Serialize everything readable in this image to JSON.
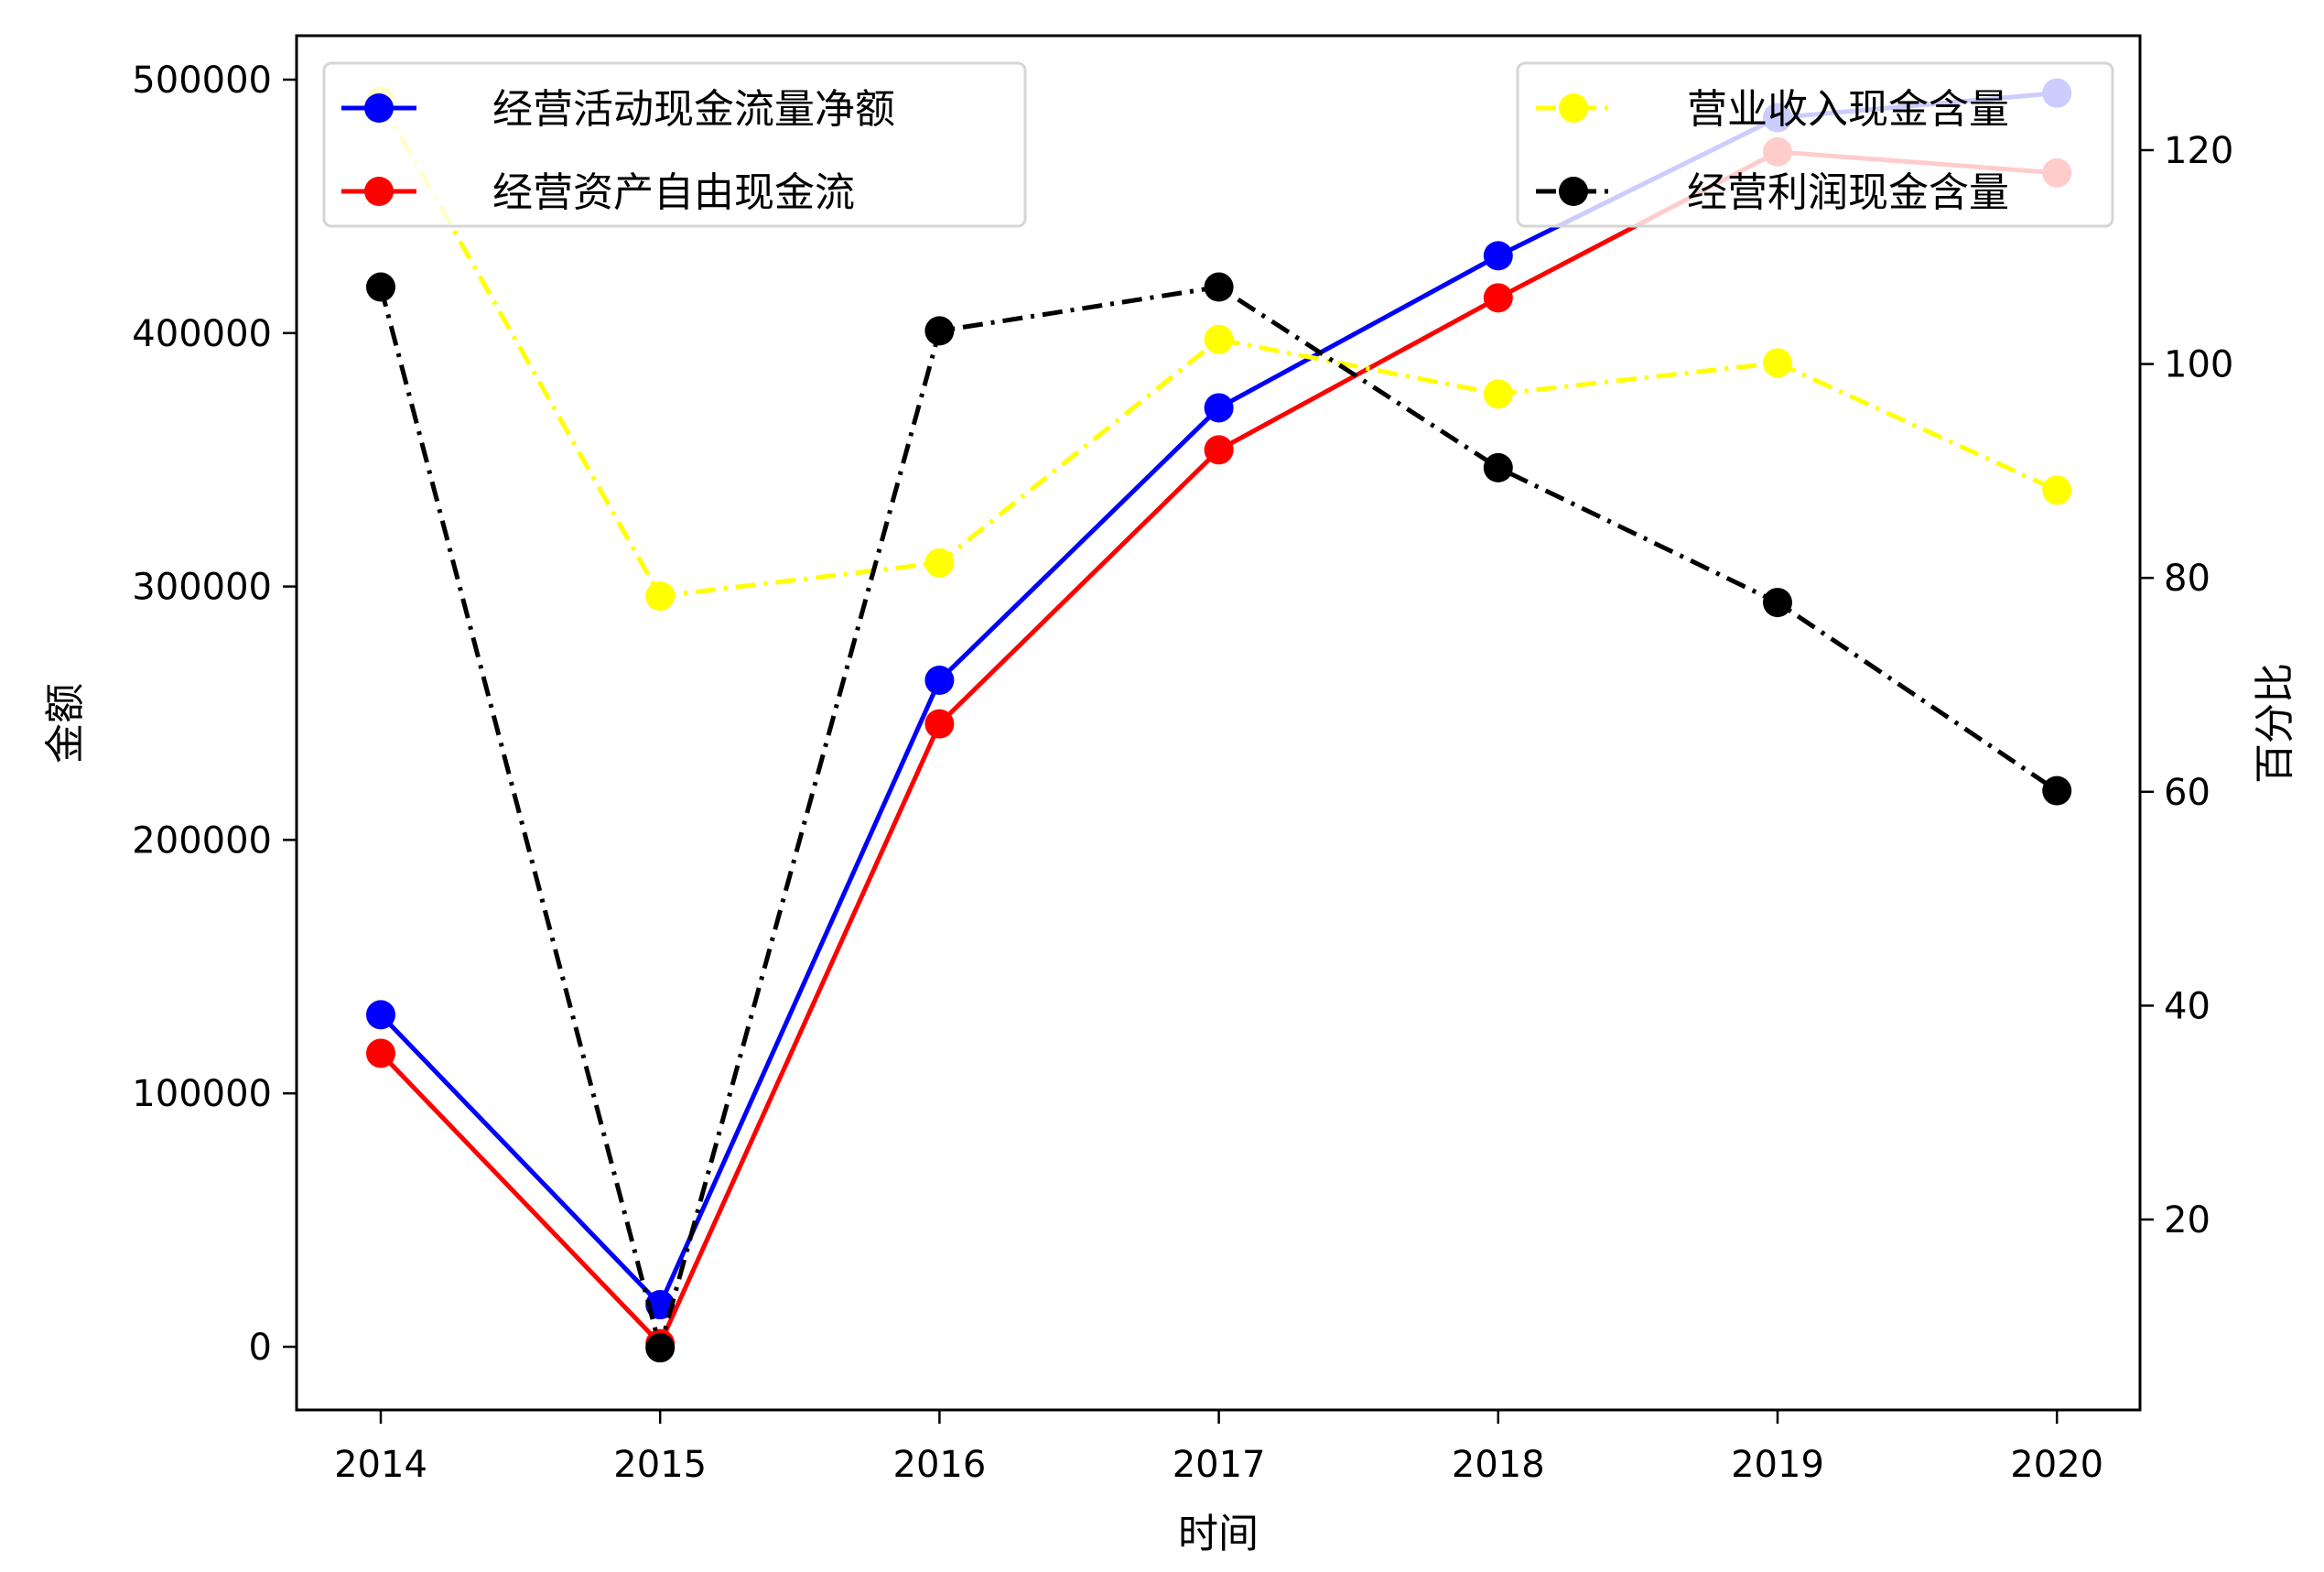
{
  "chart_data": {
    "type": "line",
    "title": "",
    "xlabel": "时间",
    "ylabel": "金额",
    "y2label": "百分比",
    "categories": [
      "2014",
      "2015",
      "2016",
      "2017",
      "2018",
      "2019",
      "2020"
    ],
    "ylim": [
      -25000,
      515000
    ],
    "y2lim": [
      2,
      130
    ],
    "yticks": [
      "0",
      "100000",
      "200000",
      "300000",
      "400000",
      "500000"
    ],
    "y2ticks": [
      "20",
      "40",
      "60",
      "80",
      "100",
      "120"
    ],
    "grid": false,
    "legend_left_position": "upper left",
    "legend_right_position": "upper right",
    "series": [
      {
        "name": "经营活动现金流量净额",
        "axis": "left",
        "color": "#0000ff",
        "linestyle": "solid",
        "marker": "circle",
        "values": [
          131000,
          16600,
          263000,
          370500,
          430500,
          485000,
          494700
        ]
      },
      {
        "name": "经营资产自由现金流",
        "axis": "left",
        "color": "#ff0000",
        "linestyle": "solid",
        "marker": "circle",
        "values": [
          115800,
          1200,
          245800,
          353900,
          413900,
          471500,
          463200
        ]
      },
      {
        "name": "营业收入现金含量",
        "axis": "right",
        "color": "#ffff00",
        "linestyle": "dashdot",
        "marker": "circle",
        "values": [
          124.6,
          78.3,
          81.4,
          102.3,
          97.2,
          100.1,
          88.2
        ]
      },
      {
        "name": "经营利润现金含量",
        "axis": "right",
        "color": "#000000",
        "linestyle": "dashdot",
        "marker": "circle",
        "values": [
          107.2,
          8.0,
          103.1,
          107.2,
          90.3,
          77.7,
          60.1
        ]
      }
    ]
  }
}
